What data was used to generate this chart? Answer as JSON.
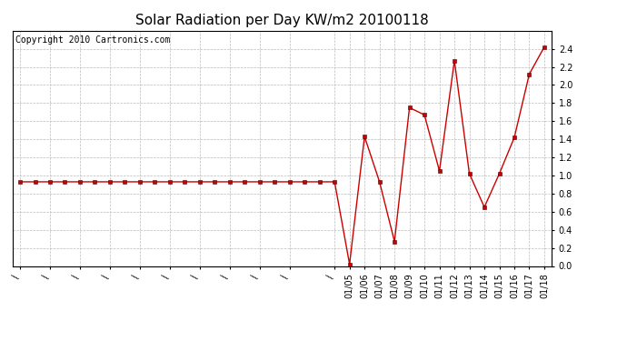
{
  "title": "Solar Radiation per Day KW/m2 20100118",
  "copyright_text": "Copyright 2010 Cartronics.com",
  "ylim": [
    0.0,
    2.6
  ],
  "yticks": [
    0.0,
    0.2,
    0.4,
    0.6,
    0.8,
    1.0,
    1.2,
    1.4,
    1.6,
    1.8,
    2.0,
    2.2,
    2.4
  ],
  "background_color": "#ffffff",
  "line_color": "#cc0000",
  "marker_size": 3,
  "values": [
    0.93,
    0.93,
    0.93,
    0.93,
    0.93,
    0.93,
    0.93,
    0.93,
    0.93,
    0.93,
    0.93,
    0.93,
    0.93,
    0.93,
    0.93,
    0.93,
    0.93,
    0.93,
    0.93,
    0.93,
    0.93,
    0.93,
    0.02,
    1.43,
    0.93,
    0.27,
    1.75,
    1.67,
    1.05,
    2.27,
    1.02,
    0.65,
    1.02,
    1.42,
    2.12,
    2.42
  ],
  "n_early": 22,
  "labeled_dates": [
    "01/05",
    "01/06",
    "01/07",
    "01/08",
    "01/09",
    "01/10",
    "01/11",
    "01/12",
    "01/13",
    "01/14",
    "01/15",
    "01/16",
    "01/17",
    "01/18"
  ],
  "n_backslash": 11,
  "title_fontsize": 11,
  "copyright_fontsize": 7,
  "tick_fontsize": 7
}
